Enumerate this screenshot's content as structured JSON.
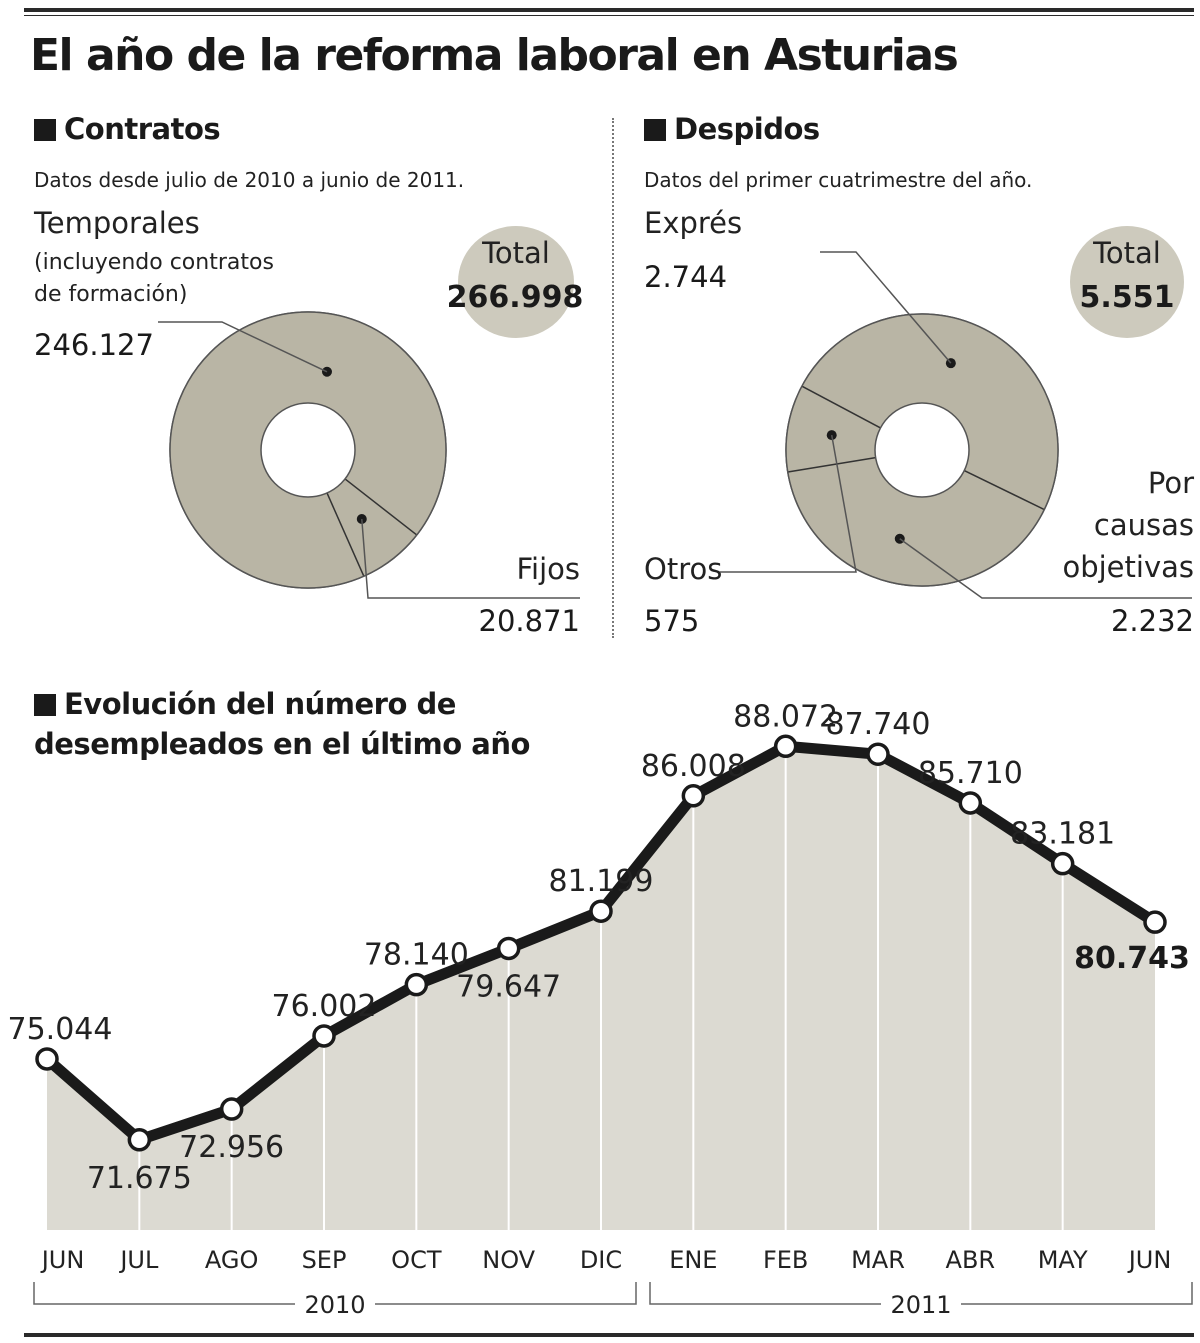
{
  "title": "El año de la reforma laboral en Asturias",
  "contratos": {
    "heading": "Contratos",
    "note": "Datos desde julio de 2010 a junio de 2011.",
    "total_label": "Total",
    "total_value": "266.998",
    "temporales_label": "Temporales",
    "temporales_sub1": "(incluyendo contratos",
    "temporales_sub2": "de formación)",
    "temporales_value": "246.127",
    "fijos_label": "Fijos",
    "fijos_value": "20.871"
  },
  "despidos": {
    "heading": "Despidos",
    "note": "Datos del primer cuatrimestre del año.",
    "total_label": "Total",
    "total_value": "5.551",
    "expres_label": "Exprés",
    "expres_value": "2.744",
    "otros_label": "Otros",
    "otros_value": "575",
    "objetivas_label1": "Por",
    "objetivas_label2": "causas",
    "objetivas_label3": "objetivas",
    "objetivas_value": "2.232"
  },
  "evolucion": {
    "heading_line1": "Evolución del número de",
    "heading_line2": "desempleados en el último año",
    "year1": "2010",
    "year2": "2011"
  },
  "colors": {
    "donut_fill": "#b9b5a5",
    "area_fill": "#dcdad2",
    "line": "#1a1a1a",
    "total_circle": "#cdcabd"
  },
  "chart_data": [
    {
      "type": "pie",
      "title": "Contratos",
      "labels": [
        "Temporales",
        "Fijos"
      ],
      "values": [
        246127,
        20871
      ],
      "total": 266998
    },
    {
      "type": "pie",
      "title": "Despidos",
      "labels": [
        "Exprés",
        "Por causas objetivas",
        "Otros"
      ],
      "values": [
        2744,
        2232,
        575
      ],
      "total": 5551
    },
    {
      "type": "area",
      "title": "Evolución del número de desempleados en el último año",
      "categories": [
        "JUN",
        "JUL",
        "AGO",
        "SEP",
        "OCT",
        "NOV",
        "DIC",
        "ENE",
        "FEB",
        "MAR",
        "ABR",
        "MAY",
        "JUN"
      ],
      "values": [
        75044,
        71675,
        72956,
        76002,
        78140,
        79647,
        81199,
        86008,
        88072,
        87740,
        85710,
        83181,
        80743
      ],
      "value_labels": [
        "75.044",
        "71.675",
        "72.956",
        "76.002",
        "78.140",
        "79.647",
        "81.199",
        "86.008",
        "88.072",
        "87.740",
        "85.710",
        "83.181",
        "80.743"
      ],
      "grid": false,
      "legend": "none"
    }
  ]
}
